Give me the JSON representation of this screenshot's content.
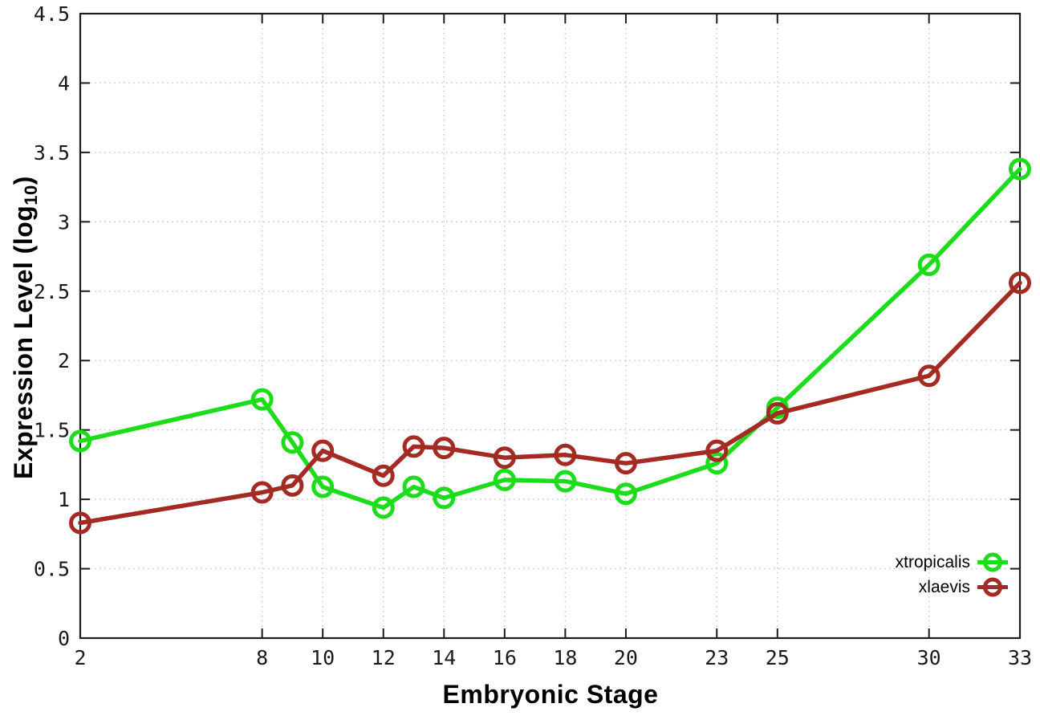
{
  "chart_data": {
    "type": "line",
    "title": "",
    "xlabel": "Embryonic Stage",
    "ylabel": "Expression Level (log10)",
    "ylabel_parts": {
      "prefix": "Expression Level (log",
      "sub": "10",
      "suffix": ")"
    },
    "xlim": [
      2,
      33
    ],
    "ylim": [
      0,
      4.5
    ],
    "x_ticks": [
      2,
      8,
      10,
      12,
      14,
      16,
      18,
      20,
      23,
      25,
      30,
      33
    ],
    "y_ticks": [
      0,
      0.5,
      1,
      1.5,
      2,
      2.5,
      3,
      3.5,
      4,
      4.5
    ],
    "grid": true,
    "legend_position": "bottom-right",
    "x": [
      2,
      8,
      9,
      10,
      12,
      13,
      14,
      16,
      18,
      20,
      23,
      25,
      30,
      33
    ],
    "series": [
      {
        "name": "xtropicalis",
        "color": "#1cdc1c",
        "values": [
          1.42,
          1.72,
          1.41,
          1.09,
          0.94,
          1.09,
          1.01,
          1.14,
          1.13,
          1.04,
          1.26,
          1.66,
          2.69,
          3.38
        ]
      },
      {
        "name": "xlaevis",
        "color": "#a32b24",
        "values": [
          0.83,
          1.05,
          1.1,
          1.35,
          1.17,
          1.38,
          1.37,
          1.3,
          1.32,
          1.26,
          1.35,
          1.62,
          1.89,
          2.56
        ]
      }
    ],
    "colors": {
      "border": "#1c1c1c",
      "grid": "#c4c4c4",
      "tick_text": "#1a1a1a"
    }
  }
}
